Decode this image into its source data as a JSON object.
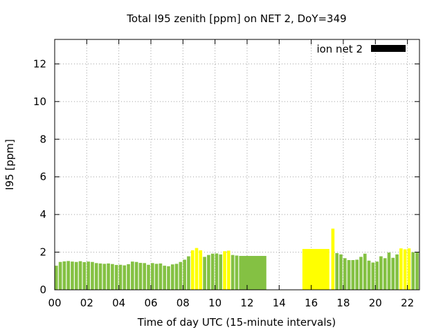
{
  "chart_data": {
    "type": "bar",
    "title": "Total I95 zenith [ppm] on NET 2, DoY=349",
    "xlabel": "Time of day UTC (15-minute intervals)",
    "ylabel": "I95 [ppm]",
    "xlim": [
      0,
      22.75
    ],
    "ylim": [
      0,
      13.3
    ],
    "x_ticks": [
      0,
      2,
      4,
      6,
      8,
      10,
      12,
      14,
      16,
      18,
      20,
      22
    ],
    "x_tick_labels": [
      "00",
      "02",
      "04",
      "06",
      "08",
      "10",
      "12",
      "14",
      "16",
      "18",
      "20",
      "22"
    ],
    "y_ticks": [
      0,
      2,
      4,
      6,
      8,
      10,
      12
    ],
    "y_tick_labels": [
      "0",
      "2",
      "4",
      "6",
      "8",
      "10",
      "12"
    ],
    "grid": true,
    "legend": {
      "label": "ion net 2",
      "color": "#000000",
      "position": "top-right"
    },
    "colors": {
      "normal": "#84c143",
      "elevated": "#ffff00"
    },
    "series": [
      {
        "bars": [
          {
            "x": 0.0,
            "w": 0.2,
            "y": 1.28,
            "level": "normal"
          },
          {
            "x": 0.25,
            "w": 0.2,
            "y": 1.48,
            "level": "normal"
          },
          {
            "x": 0.5,
            "w": 0.2,
            "y": 1.51,
            "level": "normal"
          },
          {
            "x": 0.75,
            "w": 0.2,
            "y": 1.53,
            "level": "normal"
          },
          {
            "x": 1.0,
            "w": 0.2,
            "y": 1.5,
            "level": "normal"
          },
          {
            "x": 1.25,
            "w": 0.2,
            "y": 1.48,
            "level": "normal"
          },
          {
            "x": 1.5,
            "w": 0.2,
            "y": 1.52,
            "level": "normal"
          },
          {
            "x": 1.75,
            "w": 0.2,
            "y": 1.47,
            "level": "normal"
          },
          {
            "x": 2.0,
            "w": 0.2,
            "y": 1.5,
            "level": "normal"
          },
          {
            "x": 2.25,
            "w": 0.2,
            "y": 1.48,
            "level": "normal"
          },
          {
            "x": 2.5,
            "w": 0.2,
            "y": 1.42,
            "level": "normal"
          },
          {
            "x": 2.75,
            "w": 0.2,
            "y": 1.4,
            "level": "normal"
          },
          {
            "x": 3.0,
            "w": 0.2,
            "y": 1.38,
            "level": "normal"
          },
          {
            "x": 3.25,
            "w": 0.2,
            "y": 1.4,
            "level": "normal"
          },
          {
            "x": 3.5,
            "w": 0.2,
            "y": 1.37,
            "level": "normal"
          },
          {
            "x": 3.75,
            "w": 0.2,
            "y": 1.32,
            "level": "normal"
          },
          {
            "x": 4.0,
            "w": 0.2,
            "y": 1.33,
            "level": "normal"
          },
          {
            "x": 4.25,
            "w": 0.2,
            "y": 1.3,
            "level": "normal"
          },
          {
            "x": 4.5,
            "w": 0.2,
            "y": 1.36,
            "level": "normal"
          },
          {
            "x": 4.75,
            "w": 0.2,
            "y": 1.5,
            "level": "normal"
          },
          {
            "x": 5.0,
            "w": 0.2,
            "y": 1.48,
            "level": "normal"
          },
          {
            "x": 5.25,
            "w": 0.2,
            "y": 1.43,
            "level": "normal"
          },
          {
            "x": 5.5,
            "w": 0.2,
            "y": 1.42,
            "level": "normal"
          },
          {
            "x": 5.75,
            "w": 0.2,
            "y": 1.33,
            "level": "normal"
          },
          {
            "x": 6.0,
            "w": 0.2,
            "y": 1.42,
            "level": "normal"
          },
          {
            "x": 6.25,
            "w": 0.2,
            "y": 1.38,
            "level": "normal"
          },
          {
            "x": 6.5,
            "w": 0.2,
            "y": 1.4,
            "level": "normal"
          },
          {
            "x": 6.75,
            "w": 0.2,
            "y": 1.28,
            "level": "normal"
          },
          {
            "x": 7.0,
            "w": 0.2,
            "y": 1.25,
            "level": "normal"
          },
          {
            "x": 7.25,
            "w": 0.2,
            "y": 1.35,
            "level": "normal"
          },
          {
            "x": 7.5,
            "w": 0.2,
            "y": 1.38,
            "level": "normal"
          },
          {
            "x": 7.75,
            "w": 0.2,
            "y": 1.48,
            "level": "normal"
          },
          {
            "x": 8.0,
            "w": 0.2,
            "y": 1.6,
            "level": "normal"
          },
          {
            "x": 8.25,
            "w": 0.2,
            "y": 1.78,
            "level": "normal"
          },
          {
            "x": 8.5,
            "w": 0.2,
            "y": 2.1,
            "level": "elevated"
          },
          {
            "x": 8.75,
            "w": 0.2,
            "y": 2.22,
            "level": "elevated"
          },
          {
            "x": 9.0,
            "w": 0.2,
            "y": 2.1,
            "level": "elevated"
          },
          {
            "x": 9.25,
            "w": 0.2,
            "y": 1.75,
            "level": "normal"
          },
          {
            "x": 9.5,
            "w": 0.2,
            "y": 1.85,
            "level": "normal"
          },
          {
            "x": 9.75,
            "w": 0.2,
            "y": 1.92,
            "level": "normal"
          },
          {
            "x": 10.0,
            "w": 0.2,
            "y": 1.93,
            "level": "normal"
          },
          {
            "x": 10.25,
            "w": 0.2,
            "y": 1.88,
            "level": "normal"
          },
          {
            "x": 10.5,
            "w": 0.2,
            "y": 2.05,
            "level": "elevated"
          },
          {
            "x": 10.75,
            "w": 0.2,
            "y": 2.08,
            "level": "elevated"
          },
          {
            "x": 11.0,
            "w": 0.2,
            "y": 1.85,
            "level": "normal"
          },
          {
            "x": 11.25,
            "w": 0.2,
            "y": 1.82,
            "level": "normal"
          },
          {
            "x": 11.5,
            "w": 1.7,
            "y": 1.8,
            "level": "normal"
          },
          {
            "x": 15.45,
            "w": 1.68,
            "y": 2.17,
            "level": "elevated"
          },
          {
            "x": 17.25,
            "w": 0.2,
            "y": 3.25,
            "level": "elevated"
          },
          {
            "x": 17.5,
            "w": 0.2,
            "y": 1.95,
            "level": "normal"
          },
          {
            "x": 17.75,
            "w": 0.2,
            "y": 1.88,
            "level": "normal"
          },
          {
            "x": 18.0,
            "w": 0.2,
            "y": 1.68,
            "level": "normal"
          },
          {
            "x": 18.25,
            "w": 0.2,
            "y": 1.58,
            "level": "normal"
          },
          {
            "x": 18.5,
            "w": 0.2,
            "y": 1.58,
            "level": "normal"
          },
          {
            "x": 18.75,
            "w": 0.2,
            "y": 1.6,
            "level": "normal"
          },
          {
            "x": 19.0,
            "w": 0.2,
            "y": 1.75,
            "level": "normal"
          },
          {
            "x": 19.25,
            "w": 0.2,
            "y": 1.92,
            "level": "normal"
          },
          {
            "x": 19.5,
            "w": 0.2,
            "y": 1.55,
            "level": "normal"
          },
          {
            "x": 19.75,
            "w": 0.2,
            "y": 1.45,
            "level": "normal"
          },
          {
            "x": 20.0,
            "w": 0.2,
            "y": 1.5,
            "level": "normal"
          },
          {
            "x": 20.25,
            "w": 0.2,
            "y": 1.78,
            "level": "normal"
          },
          {
            "x": 20.5,
            "w": 0.2,
            "y": 1.68,
            "level": "normal"
          },
          {
            "x": 20.75,
            "w": 0.2,
            "y": 1.98,
            "level": "normal"
          },
          {
            "x": 21.0,
            "w": 0.2,
            "y": 1.7,
            "level": "normal"
          },
          {
            "x": 21.25,
            "w": 0.2,
            "y": 1.88,
            "level": "normal"
          },
          {
            "x": 21.5,
            "w": 0.2,
            "y": 2.2,
            "level": "elevated"
          },
          {
            "x": 21.75,
            "w": 0.2,
            "y": 2.15,
            "level": "elevated"
          },
          {
            "x": 22.0,
            "w": 0.2,
            "y": 2.2,
            "level": "elevated"
          },
          {
            "x": 22.25,
            "w": 0.2,
            "y": 2.0,
            "level": "normal"
          },
          {
            "x": 22.5,
            "w": 0.2,
            "y": 1.98,
            "level": "normal"
          }
        ]
      }
    ]
  }
}
